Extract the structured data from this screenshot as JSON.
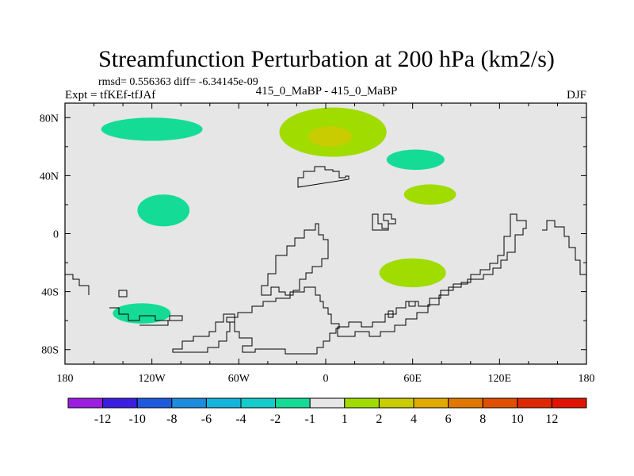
{
  "chart_data": {
    "type": "contour-map",
    "title": "Streamfunction Perturbation at 200 hPa (km2/s)",
    "stats_line": "rmsd= 0.556363 diff= -6.34145e-09",
    "left_label": "Expt = tfKEf-tfJAf",
    "center_label": "415_0_MaBP - 415_0_MaBP",
    "right_label": "DJF",
    "xlim": [
      -180,
      180
    ],
    "ylim": [
      -90,
      90
    ],
    "x_ticks": [
      {
        "value": -180,
        "label": "180"
      },
      {
        "value": -120,
        "label": "120W"
      },
      {
        "value": -60,
        "label": "60W"
      },
      {
        "value": 0,
        "label": "0"
      },
      {
        "value": 60,
        "label": "60E"
      },
      {
        "value": 120,
        "label": "120E"
      },
      {
        "value": 180,
        "label": "180"
      }
    ],
    "y_ticks": [
      {
        "value": 80,
        "label": "80N"
      },
      {
        "value": 40,
        "label": "40N"
      },
      {
        "value": 0,
        "label": "0"
      },
      {
        "value": -40,
        "label": "40S"
      },
      {
        "value": -80,
        "label": "80S"
      }
    ],
    "colorbar": {
      "labels": [
        "-12",
        "-10",
        "-8",
        "-6",
        "-4",
        "-2",
        "-1",
        "1",
        "2",
        "4",
        "6",
        "8",
        "10",
        "12"
      ],
      "colors": [
        "#9b1ee0",
        "#3c1ee0",
        "#1e5adc",
        "#1e8cdc",
        "#14b4dc",
        "#14cccc",
        "#14dc96",
        "#e6e6e6",
        "#a0dc00",
        "#c8cc00",
        "#e0aa00",
        "#e07800",
        "#e05000",
        "#e02800",
        "#e01400"
      ]
    },
    "regions": [
      {
        "level": "-2..-1",
        "color": "#14dc96",
        "center": [
          -120,
          72
        ],
        "rx": 35,
        "ry": 8
      },
      {
        "level": "-2..-1",
        "color": "#14dc96",
        "center": [
          -112,
          16
        ],
        "rx": 18,
        "ry": 11
      },
      {
        "level": "-2..-1",
        "color": "#14dc96",
        "center": [
          -127,
          -55
        ],
        "rx": 20,
        "ry": 7
      },
      {
        "level": "-2..-1",
        "color": "#14dc96",
        "center": [
          62,
          51
        ],
        "rx": 20,
        "ry": 7
      },
      {
        "level": "1..2",
        "color": "#a0dc00",
        "center": [
          5,
          70
        ],
        "rx": 37,
        "ry": 17
      },
      {
        "level": "2..4",
        "color": "#c8cc00",
        "center": [
          3,
          67
        ],
        "rx": 15,
        "ry": 7
      },
      {
        "level": "1..2",
        "color": "#a0dc00",
        "center": [
          72,
          27
        ],
        "rx": 18,
        "ry": 7
      },
      {
        "level": "1..2",
        "color": "#a0dc00",
        "center": [
          60,
          -27
        ],
        "rx": 23,
        "ry": 10
      }
    ],
    "background_color": "#e6e6e6"
  }
}
